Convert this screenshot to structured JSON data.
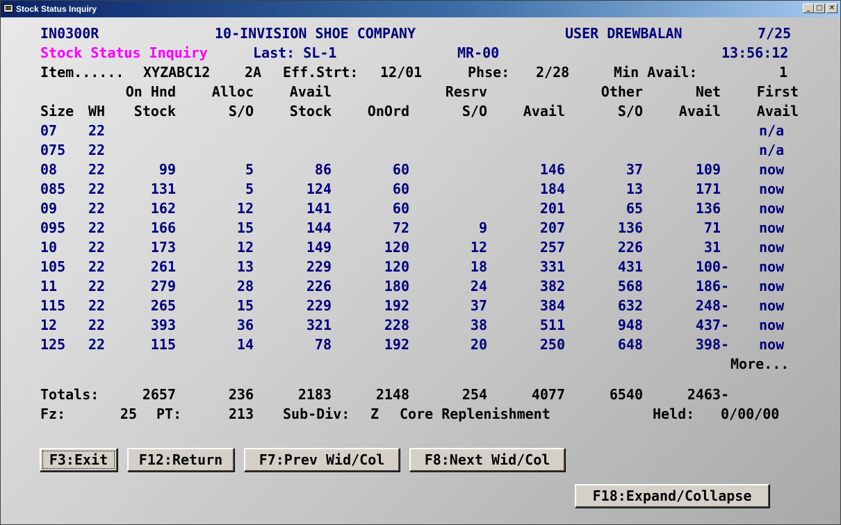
{
  "window": {
    "title": "Stock Status Inquiry"
  },
  "header": {
    "program": "IN0300R",
    "company": "10-INVISION SHOE COMPANY",
    "user": "USER DREWBALAN",
    "date": "7/25",
    "screen_title": "Stock Status Inquiry",
    "last": "Last: SL-1",
    "mr": "MR-00",
    "time": "13:56:12"
  },
  "item_line": {
    "item_label": "Item......",
    "item": "XYZABC12",
    "code": "2A",
    "eff_label": "Eff.Strt:",
    "eff": "12/01",
    "phse_label": "Phse:",
    "phse": "2/28",
    "min_label": "Min Avail:",
    "min": "1"
  },
  "columns": {
    "h1": [
      "",
      "",
      "On Hnd",
      "Alloc",
      "Avail",
      "",
      "Resrv",
      "",
      "Other",
      "Net",
      "First"
    ],
    "h2": [
      "Size",
      "WH",
      "Stock",
      "S/O",
      "Stock",
      "OnOrd",
      "S/O",
      "Avail",
      "S/O",
      "Avail",
      "Avail"
    ]
  },
  "rows": [
    [
      "07",
      "22",
      "",
      "",
      "",
      "",
      "",
      "",
      "",
      "",
      "n/a"
    ],
    [
      "075",
      "22",
      "",
      "",
      "",
      "",
      "",
      "",
      "",
      "",
      "n/a"
    ],
    [
      "08",
      "22",
      "99",
      "5",
      "86",
      "60",
      "",
      "146",
      "37",
      "109",
      "now"
    ],
    [
      "085",
      "22",
      "131",
      "5",
      "124",
      "60",
      "",
      "184",
      "13",
      "171",
      "now"
    ],
    [
      "09",
      "22",
      "162",
      "12",
      "141",
      "60",
      "",
      "201",
      "65",
      "136",
      "now"
    ],
    [
      "095",
      "22",
      "166",
      "15",
      "144",
      "72",
      "9",
      "207",
      "136",
      "71",
      "now"
    ],
    [
      "10",
      "22",
      "173",
      "12",
      "149",
      "120",
      "12",
      "257",
      "226",
      "31",
      "now"
    ],
    [
      "105",
      "22",
      "261",
      "13",
      "229",
      "120",
      "18",
      "331",
      "431",
      "100-",
      "now"
    ],
    [
      "11",
      "22",
      "279",
      "28",
      "226",
      "180",
      "24",
      "382",
      "568",
      "186-",
      "now"
    ],
    [
      "115",
      "22",
      "265",
      "15",
      "229",
      "192",
      "37",
      "384",
      "632",
      "248-",
      "now"
    ],
    [
      "12",
      "22",
      "393",
      "36",
      "321",
      "228",
      "38",
      "511",
      "948",
      "437-",
      "now"
    ],
    [
      "125",
      "22",
      "115",
      "14",
      "78",
      "192",
      "20",
      "250",
      "648",
      "398-",
      "now"
    ]
  ],
  "more": "More...",
  "totals": {
    "label": "Totals:",
    "values": [
      "2657",
      "236",
      "2183",
      "2148",
      "254",
      "4077",
      "6540",
      "2463-"
    ]
  },
  "footer_line": {
    "fz_label": "Fz:",
    "fz": "25",
    "pt_label": "PT:",
    "pt": "213",
    "subdiv_label": "Sub-Div:",
    "subdiv": "Z",
    "subdiv_desc": "Core Replenishment",
    "held_label": "Held:",
    "held": "0/00/00"
  },
  "fkeys": {
    "f3": "F3:Exit",
    "f12": "F12:Return",
    "f7": "F7:Prev Wid/Col",
    "f8": "F8:Next Wid/Col",
    "f18": "F18:Expand/Collapse"
  },
  "colors": {
    "field_blue": "#00007b",
    "title_magenta": "#ff00ff",
    "label_black": "#000000",
    "titlebar_blue": "#0a246a"
  },
  "icons": {
    "app": "window-app-icon",
    "minimize": "minimize-icon",
    "maximize": "maximize-icon",
    "close": "close-icon"
  }
}
